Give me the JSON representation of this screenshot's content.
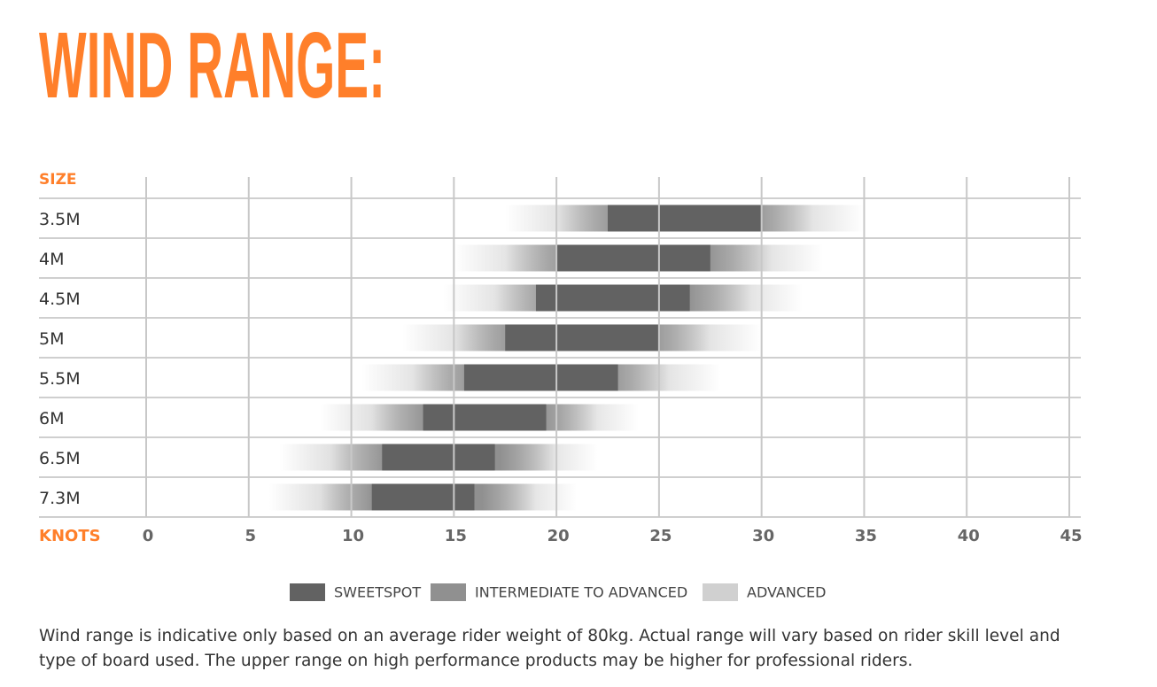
{
  "chart_data": {
    "type": "range",
    "title": "WIND RANGE:",
    "category_label": "SIZE",
    "x_label": "KNOTS",
    "categories": [
      "3.5M",
      "4M",
      "4.5M",
      "5M",
      "5.5M",
      "6M",
      "6.5M",
      "7.3M"
    ],
    "series": [
      {
        "name": "ADVANCED",
        "color": "#d0d0d0",
        "low": [
          17.5,
          15,
          14.5,
          12.5,
          10.5,
          8.5,
          6.5,
          6
        ],
        "high": [
          35,
          33,
          32,
          30,
          28,
          24,
          22,
          21
        ]
      },
      {
        "name": "INTERMEDIATE TO ADVANCED",
        "color": "#909090",
        "low": [
          20,
          17.5,
          17,
          15,
          13,
          11,
          9,
          8.5
        ],
        "high": [
          32.5,
          30.5,
          29.5,
          27.5,
          25.5,
          22,
          20,
          19
        ]
      },
      {
        "name": "SWEETSPOT",
        "color": "#626262",
        "low": [
          22.5,
          20,
          19,
          17.5,
          15.5,
          13.5,
          11.5,
          11
        ],
        "high": [
          30,
          27.5,
          26.5,
          25,
          23,
          19.5,
          17,
          16
        ]
      }
    ],
    "legend_order": [
      2,
      1,
      0
    ],
    "xlim": [
      0,
      45
    ],
    "xticks": [
      0,
      5,
      10,
      15,
      20,
      25,
      30,
      35,
      40,
      45
    ],
    "grid": true,
    "footnote": "Wind range is indicative only based on an average rider weight of 80kg. Actual range will vary based on rider skill level and type of board used. The upper range on high performance products may be higher for professional riders."
  }
}
